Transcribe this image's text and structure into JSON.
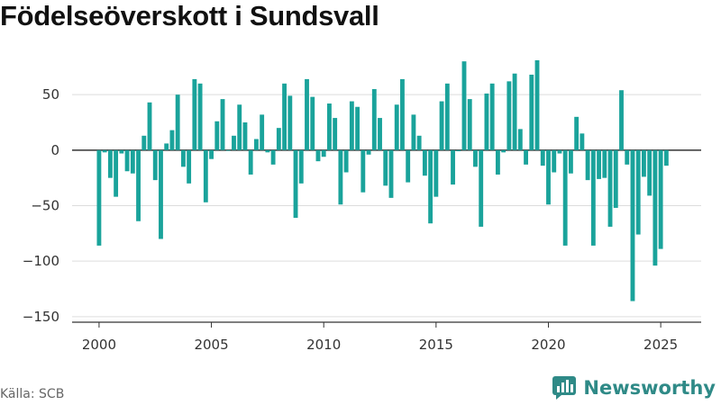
{
  "page": {
    "title": "Födelseöverskott i Sundsvall",
    "source": "Källa: SCB",
    "brand": "Newsworthy",
    "brand_icon": "newsworthy-logo-icon"
  },
  "colors": {
    "bar": "#1aa39b",
    "zero_line": "#333333",
    "grid": "#dddddd",
    "axis": "#333333",
    "brand": "#2f8a87"
  },
  "chart_data": {
    "type": "bar",
    "title": "Födelseöverskott i Sundsvall",
    "xlabel": "",
    "ylabel": "",
    "x_ticks": [
      2000,
      2005,
      2010,
      2015,
      2020,
      2025
    ],
    "x_tick_labels": [
      "2000",
      "2005",
      "2010",
      "2015",
      "2020",
      "2025"
    ],
    "y_ticks": [
      50,
      0,
      -50,
      -100,
      -150
    ],
    "y_tick_labels": [
      "50",
      "0",
      "−50",
      "−100",
      "−150"
    ],
    "xlim": [
      1998.8,
      2026.8
    ],
    "ylim": [
      -155,
      85
    ],
    "grid": true,
    "interval": "quarterly",
    "x": [
      2000.0,
      2000.25,
      2000.5,
      2000.75,
      2001.0,
      2001.25,
      2001.5,
      2001.75,
      2002.0,
      2002.25,
      2002.5,
      2002.75,
      2003.0,
      2003.25,
      2003.5,
      2003.75,
      2004.0,
      2004.25,
      2004.5,
      2004.75,
      2005.0,
      2005.25,
      2005.5,
      2005.75,
      2006.0,
      2006.25,
      2006.5,
      2006.75,
      2007.0,
      2007.25,
      2007.5,
      2007.75,
      2008.0,
      2008.25,
      2008.5,
      2008.75,
      2009.0,
      2009.25,
      2009.5,
      2009.75,
      2010.0,
      2010.25,
      2010.5,
      2010.75,
      2011.0,
      2011.25,
      2011.5,
      2011.75,
      2012.0,
      2012.25,
      2012.5,
      2012.75,
      2013.0,
      2013.25,
      2013.5,
      2013.75,
      2014.0,
      2014.25,
      2014.5,
      2014.75,
      2015.0,
      2015.25,
      2015.5,
      2015.75,
      2016.0,
      2016.25,
      2016.5,
      2016.75,
      2017.0,
      2017.25,
      2017.5,
      2017.75,
      2018.0,
      2018.25,
      2018.5,
      2018.75,
      2019.0,
      2019.25,
      2019.5,
      2019.75,
      2020.0,
      2020.25,
      2020.5,
      2020.75,
      2021.0,
      2021.25,
      2021.5,
      2021.75,
      2022.0,
      2022.25,
      2022.5,
      2022.75,
      2023.0,
      2023.25,
      2023.5,
      2023.75,
      2024.0,
      2024.25,
      2024.5,
      2024.75,
      2025.0,
      2025.25
    ],
    "values": [
      -86,
      -2,
      -25,
      -42,
      -3,
      -19,
      -21,
      -64,
      13,
      43,
      -27,
      -80,
      6,
      18,
      50,
      -15,
      -30,
      64,
      60,
      -47,
      -8,
      26,
      46,
      0,
      13,
      41,
      25,
      -22,
      10,
      32,
      -2,
      -13,
      20,
      60,
      49,
      -61,
      -30,
      64,
      48,
      -10,
      -6,
      42,
      29,
      -49,
      -20,
      44,
      39,
      -38,
      -4,
      55,
      29,
      -32,
      -43,
      41,
      64,
      -29,
      32,
      13,
      -23,
      -66,
      -42,
      44,
      60,
      -31,
      -1,
      80,
      46,
      -15,
      -69,
      51,
      60,
      -22,
      -2,
      62,
      69,
      19,
      -13,
      68,
      81,
      -14,
      -49,
      -20,
      -3,
      -86,
      -21,
      30,
      15,
      -27,
      -86,
      -26,
      -25,
      -69,
      -52,
      54,
      -13,
      -136,
      -76,
      -24,
      -41,
      -104,
      -89,
      -14
    ]
  }
}
